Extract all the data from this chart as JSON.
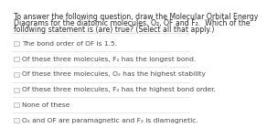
{
  "title_lines": [
    "To answer the following question, draw the Molecular Orbital Energy",
    "Diagrams for the diatomic molecules, O₂, OF and F₂.  Which of the",
    "following statement is (are) true? (Select all that apply.)"
  ],
  "options": [
    "The bond order of OF is 1.5.",
    "Of these three molecules, F₂ has the longest bond.",
    "Of these three molecules, O₂ has the highest stability",
    "Of these three molecules, F₂ has the highest bond order.",
    "None of these",
    "O₂ and OF are paramagnetic and F₂ is diamagnetic."
  ],
  "bg_color": "#ffffff",
  "text_color": "#4a4a4a",
  "title_color": "#2a2a2a",
  "font_size_title": 5.6,
  "font_size_option": 5.4,
  "separator_color": "#d8d8d8",
  "checkbox_edge_color": "#b0b0b0",
  "checkbox_face_color": "#f5f5f5"
}
